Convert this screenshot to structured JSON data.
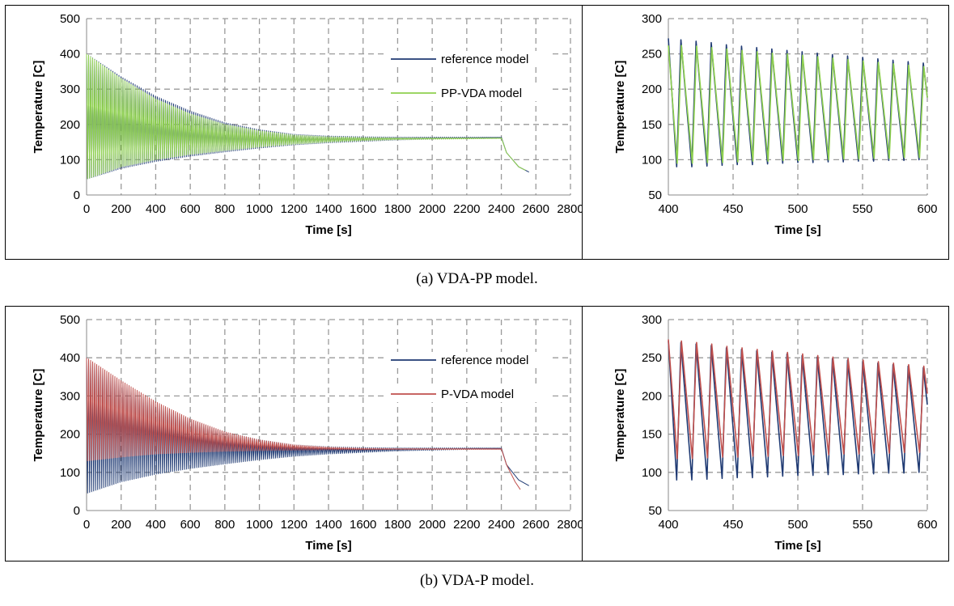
{
  "figures": [
    {
      "caption": "(a) VDA-PP model.",
      "left_chart": {
        "type": "line",
        "xlabel": "Time [s]",
        "ylabel": "Temperature [C]",
        "xlim": [
          0,
          2800
        ],
        "ylim": [
          0,
          500
        ],
        "xticks": [
          0,
          200,
          400,
          600,
          800,
          1000,
          1200,
          1400,
          1600,
          1800,
          2000,
          2200,
          2400,
          2600,
          2800
        ],
        "yticks": [
          0,
          100,
          200,
          300,
          400,
          500
        ],
        "legend": [
          "reference model",
          "PP-VDA model"
        ],
        "legend_placement": "top-right"
      },
      "right_chart": {
        "type": "line",
        "xlabel": "Time [s]",
        "ylabel": "Temperature [C]",
        "xlim": [
          400,
          600
        ],
        "ylim": [
          50,
          300
        ],
        "xticks": [
          400,
          450,
          500,
          550,
          600
        ],
        "yticks": [
          50,
          100,
          150,
          200,
          250,
          300
        ]
      }
    },
    {
      "caption": "(b) VDA-P model.",
      "left_chart": {
        "type": "line",
        "xlabel": "Time [s]",
        "ylabel": "Temperature [C]",
        "xlim": [
          0,
          2800
        ],
        "ylim": [
          0,
          500
        ],
        "xticks": [
          0,
          200,
          400,
          600,
          800,
          1000,
          1200,
          1400,
          1600,
          1800,
          2000,
          2200,
          2400,
          2600,
          2800
        ],
        "yticks": [
          0,
          100,
          200,
          300,
          400,
          500
        ],
        "legend": [
          "reference model",
          "P-VDA model"
        ],
        "legend_placement": "top-right"
      },
      "right_chart": {
        "type": "line",
        "xlabel": "Time [s]",
        "ylabel": "Temperature [C]",
        "xlim": [
          400,
          600
        ],
        "ylim": [
          50,
          300
        ],
        "xticks": [
          400,
          450,
          500,
          550,
          600
        ],
        "yticks": [
          50,
          100,
          150,
          200,
          250,
          300
        ]
      }
    }
  ],
  "chart_data": [
    {
      "type": "line",
      "xlabel": "Time [s]",
      "ylabel": "Temperature [C]",
      "xlim": [
        0,
        2800
      ],
      "ylim": [
        0,
        500
      ],
      "grid": true,
      "legend_placement": "top-right",
      "series": [
        {
          "name": "reference model",
          "color": "#1f3a73",
          "envelope": {
            "x": [
              0,
              200,
              400,
              600,
              800,
              1000,
              1200,
              1400,
              1600,
              1800,
              2000,
              2200,
              2400,
              2430,
              2500,
              2560
            ],
            "upper": [
              400,
              335,
              280,
              238,
              205,
              185,
              172,
              167,
              165,
              164,
              164,
              164,
              164,
              120,
              80,
              65
            ],
            "lower": [
              45,
              75,
              95,
              110,
              122,
              133,
              142,
              148,
              152,
              156,
              158,
              160,
              161,
              120,
              80,
              65
            ]
          }
        },
        {
          "name": "PP-VDA model",
          "color": "#8fd14f",
          "envelope": {
            "x": [
              0,
              200,
              400,
              600,
              800,
              1000,
              1200,
              1400,
              1600,
              1800,
              2000,
              2200,
              2400,
              2430,
              2500,
              2540
            ],
            "upper": [
              400,
              330,
              272,
              230,
              200,
              182,
              170,
              165,
              163,
              162,
              162,
              162,
              162,
              120,
              80,
              70
            ],
            "lower": [
              45,
              80,
              100,
              115,
              126,
              136,
              144,
              150,
              154,
              157,
              158,
              159,
              160,
              120,
              80,
              70
            ]
          }
        }
      ]
    },
    {
      "type": "line",
      "xlabel": "Time [s]",
      "ylabel": "Temperature [C]",
      "xlim": [
        400,
        600
      ],
      "ylim": [
        50,
        300
      ],
      "grid": true,
      "series": [
        {
          "name": "reference model",
          "color": "#1f3a73",
          "cycles": {
            "start": 398,
            "period": 11.7,
            "peaks": [
              272,
              270,
              268,
              266,
              263,
              261,
              259,
              257,
              255,
              253,
              251,
              249,
              247,
              245,
              243,
              241,
              239,
              237
            ],
            "troughs": [
              90,
              90,
              91,
              92,
              93,
              93,
              94,
              95,
              96,
              96,
              97,
              97,
              98,
              98,
              99,
              99,
              100,
              100
            ]
          }
        },
        {
          "name": "PP-VDA model",
          "color": "#8fd14f",
          "cycles": {
            "start": 398,
            "period": 11.7,
            "peaks": [
              262,
              262,
              261,
              259,
              257,
              255,
              253,
              251,
              250,
              248,
              246,
              244,
              242,
              240,
              238,
              236,
              234,
              232
            ],
            "troughs": [
              95,
              95,
              96,
              96,
              97,
              98,
              98,
              99,
              99,
              100,
              100,
              101,
              101,
              102,
              102,
              103,
              103,
              104
            ]
          }
        }
      ]
    },
    {
      "type": "line",
      "xlabel": "Time [s]",
      "ylabel": "Temperature [C]",
      "xlim": [
        0,
        2800
      ],
      "ylim": [
        0,
        500
      ],
      "grid": true,
      "legend_placement": "top-right",
      "series": [
        {
          "name": "reference model",
          "color": "#1f3a73",
          "envelope": {
            "x": [
              0,
              200,
              400,
              600,
              800,
              1000,
              1200,
              1400,
              1600,
              1800,
              2000,
              2200,
              2400,
              2430,
              2500,
              2560
            ],
            "upper": [
              400,
              335,
              280,
              238,
              205,
              185,
              172,
              167,
              165,
              164,
              164,
              164,
              164,
              120,
              80,
              65
            ],
            "lower": [
              45,
              75,
              95,
              110,
              122,
              133,
              142,
              148,
              152,
              156,
              158,
              160,
              161,
              120,
              80,
              65
            ]
          }
        },
        {
          "name": "P-VDA model",
          "color": "#c0504d",
          "envelope": {
            "x": [
              0,
              200,
              400,
              600,
              800,
              1000,
              1200,
              1400,
              1600,
              1800,
              2000,
              2200,
              2400,
              2430,
              2480,
              2510
            ],
            "upper": [
              400,
              340,
              285,
              240,
              206,
              185,
              172,
              166,
              163,
              162,
              162,
              162,
              162,
              120,
              75,
              55
            ],
            "lower": [
              130,
              140,
              148,
              152,
              155,
              157,
              158,
              159,
              159,
              160,
              160,
              160,
              160,
              120,
              75,
              55
            ]
          }
        }
      ]
    },
    {
      "type": "line",
      "xlabel": "Time [s]",
      "ylabel": "Temperature [C]",
      "xlim": [
        400,
        600
      ],
      "ylim": [
        50,
        300
      ],
      "grid": true,
      "series": [
        {
          "name": "reference model",
          "color": "#1f3a73",
          "cycles": {
            "start": 398,
            "period": 11.7,
            "peaks": [
              272,
              270,
              268,
              266,
              263,
              261,
              259,
              257,
              255,
              253,
              251,
              249,
              247,
              245,
              243,
              241,
              239,
              237
            ],
            "troughs": [
              90,
              90,
              91,
              92,
              93,
              93,
              94,
              95,
              96,
              96,
              97,
              97,
              98,
              98,
              99,
              99,
              100,
              100
            ]
          }
        },
        {
          "name": "P-VDA model",
          "color": "#c0504d",
          "cycles": {
            "start": 398,
            "period": 11.7,
            "peaks": [
              274,
              272,
              270,
              268,
              265,
              263,
              261,
              259,
              257,
              255,
              253,
              251,
              249,
              247,
              245,
              243,
              241,
              239
            ],
            "troughs": [
              118,
              118,
              119,
              120,
              120,
              121,
              121,
              122,
              122,
              123,
              123,
              124,
              124,
              125,
              125,
              126,
              126,
              127
            ]
          }
        }
      ]
    }
  ]
}
